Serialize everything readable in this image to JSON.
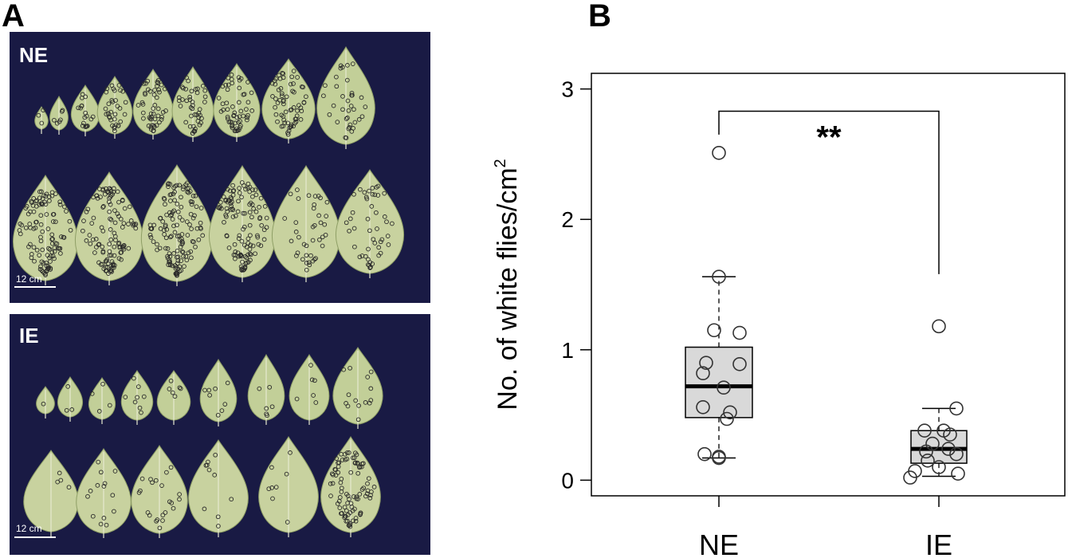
{
  "figure": {
    "panel_a_label": "A",
    "panel_b_label": "B"
  },
  "photos": {
    "top": {
      "label": "NE",
      "scale_bar": "12 cm"
    },
    "bottom": {
      "label": "IE",
      "scale_bar": "12 cm"
    }
  },
  "colors": {
    "photo_background": "#191a44",
    "leaf_fill": "#c2cf98",
    "leaf_highlight": "#d9ddb0",
    "box_fill": "#d9d9d9",
    "ink": "#000000"
  },
  "chart_data": {
    "type": "box",
    "ylabel": "No. of white flies/cm",
    "ylabel_superscript": "2",
    "categories": [
      "NE",
      "IE"
    ],
    "yticks": [
      0,
      1,
      2,
      3
    ],
    "ylim": [
      -0.12,
      3.12
    ],
    "boxes": [
      {
        "category": "NE",
        "whisker_low": 0.17,
        "q1": 0.48,
        "median": 0.72,
        "q3": 1.02,
        "whisker_high": 1.56
      },
      {
        "category": "IE",
        "whisker_low": 0.03,
        "q1": 0.13,
        "median": 0.24,
        "q3": 0.38,
        "whisker_high": 0.55
      }
    ],
    "points": [
      {
        "category": "NE",
        "values": [
          2.51,
          1.56,
          1.15,
          1.13,
          0.9,
          0.89,
          0.82,
          0.71,
          0.56,
          0.52,
          0.47,
          0.2,
          0.17,
          0.18
        ]
      },
      {
        "category": "IE",
        "values": [
          1.18,
          0.55,
          0.38,
          0.38,
          0.35,
          0.28,
          0.24,
          0.22,
          0.2,
          0.15,
          0.1,
          0.07,
          0.05,
          0.02
        ]
      }
    ],
    "significance": {
      "text": "**",
      "between": [
        "NE",
        "IE"
      ]
    },
    "grid": false
  }
}
